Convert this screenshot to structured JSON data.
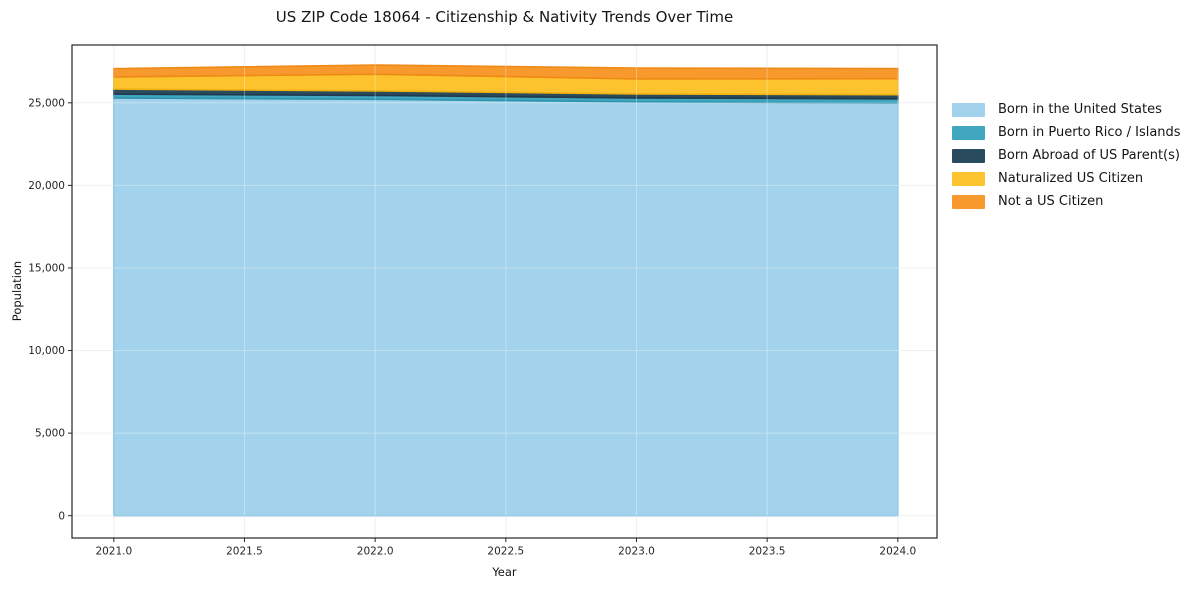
{
  "chart_data": {
    "type": "area",
    "stacked": true,
    "title": "US ZIP Code 18064 - Citizenship & Nativity Trends Over Time",
    "xlabel": "Year",
    "ylabel": "Population",
    "x": [
      2021,
      2022,
      2023,
      2024
    ],
    "series": [
      {
        "name": "Born in the United States",
        "values": [
          25290,
          25210,
          25060,
          25000
        ],
        "fill": "#a3d3ec",
        "edge": "#7cbede"
      },
      {
        "name": "Born in Puerto Rico / Islands",
        "values": [
          240,
          240,
          240,
          240
        ],
        "fill": "#41a6c0",
        "edge": "#2e94ad"
      },
      {
        "name": "Born Abroad of US Parent(s)",
        "values": [
          300,
          270,
          240,
          250
        ],
        "fill": "#2a4a5e",
        "edge": "#203a4b"
      },
      {
        "name": "Naturalized US Citizen",
        "values": [
          730,
          1010,
          910,
          970
        ],
        "fill": "#fcc32e",
        "edge": "#f0b211"
      },
      {
        "name": "Not a US Citizen",
        "values": [
          510,
          560,
          660,
          610
        ],
        "fill": "#f8992e",
        "edge": "#ee8a16"
      }
    ],
    "xlim": [
      2020.84,
      2024.15
    ],
    "ylim": [
      -1350,
      28500
    ],
    "xticks": [
      2021.0,
      2021.5,
      2022.0,
      2022.5,
      2023.0,
      2023.5,
      2024.0
    ],
    "yticks": [
      0,
      5000,
      10000,
      15000,
      20000,
      25000
    ],
    "grid": true,
    "legend_position": "right",
    "colors": {
      "spine": "#262626",
      "tick_label": "#262626",
      "grid_under": "#eaeaef",
      "grid_over": "rgba(255,255,255,0.32)",
      "background": "#ffffff"
    }
  }
}
